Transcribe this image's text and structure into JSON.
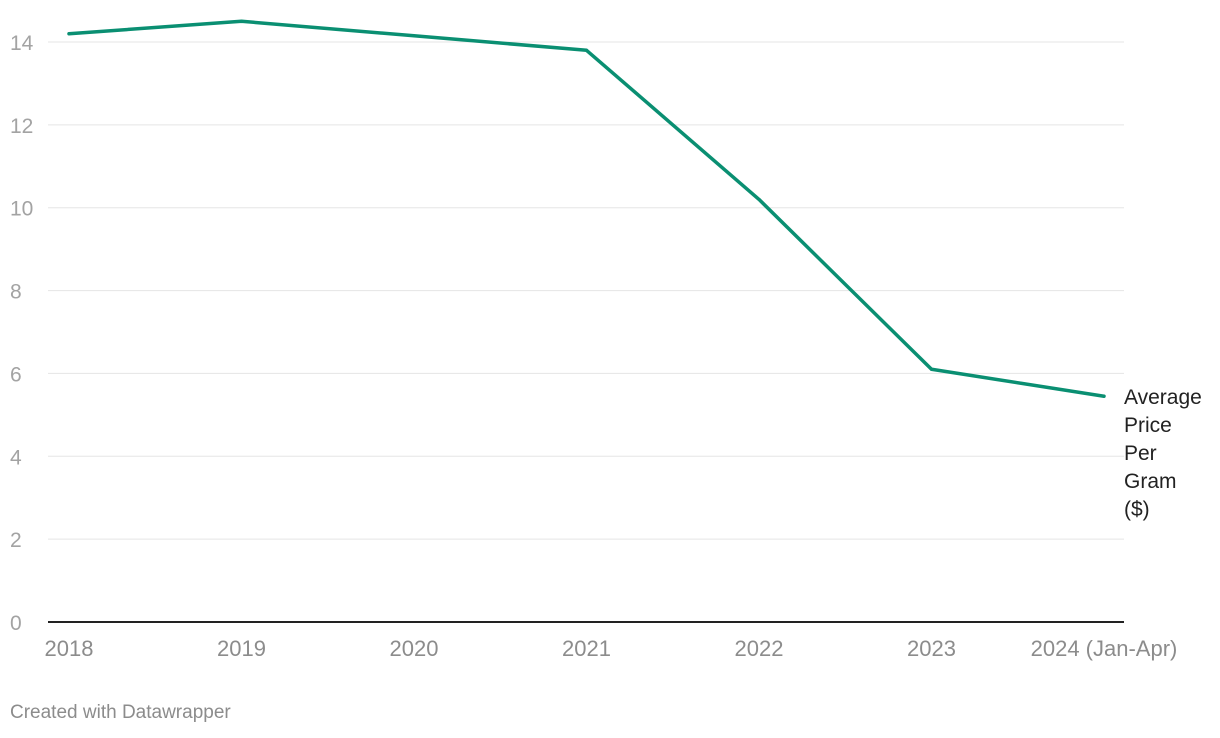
{
  "chart_data": {
    "type": "line",
    "title": "",
    "xlabel": "",
    "ylabel": "",
    "categories": [
      "2018",
      "2019",
      "2020",
      "2021",
      "2022",
      "2023",
      "2024 (Jan-Apr)"
    ],
    "series": [
      {
        "name": "Average Price Per Gram ($)",
        "label_lines": [
          "Average",
          "Price",
          "Per",
          "Gram",
          "($)"
        ],
        "color": "#0a8f72",
        "values": [
          14.2,
          14.5,
          14.15,
          13.8,
          10.2,
          6.1,
          5.45
        ]
      }
    ],
    "ylim": [
      0,
      14
    ],
    "yticks": [
      0,
      2,
      4,
      6,
      8,
      10,
      12,
      14
    ],
    "grid": true
  },
  "credit": "Created with Datawrapper"
}
